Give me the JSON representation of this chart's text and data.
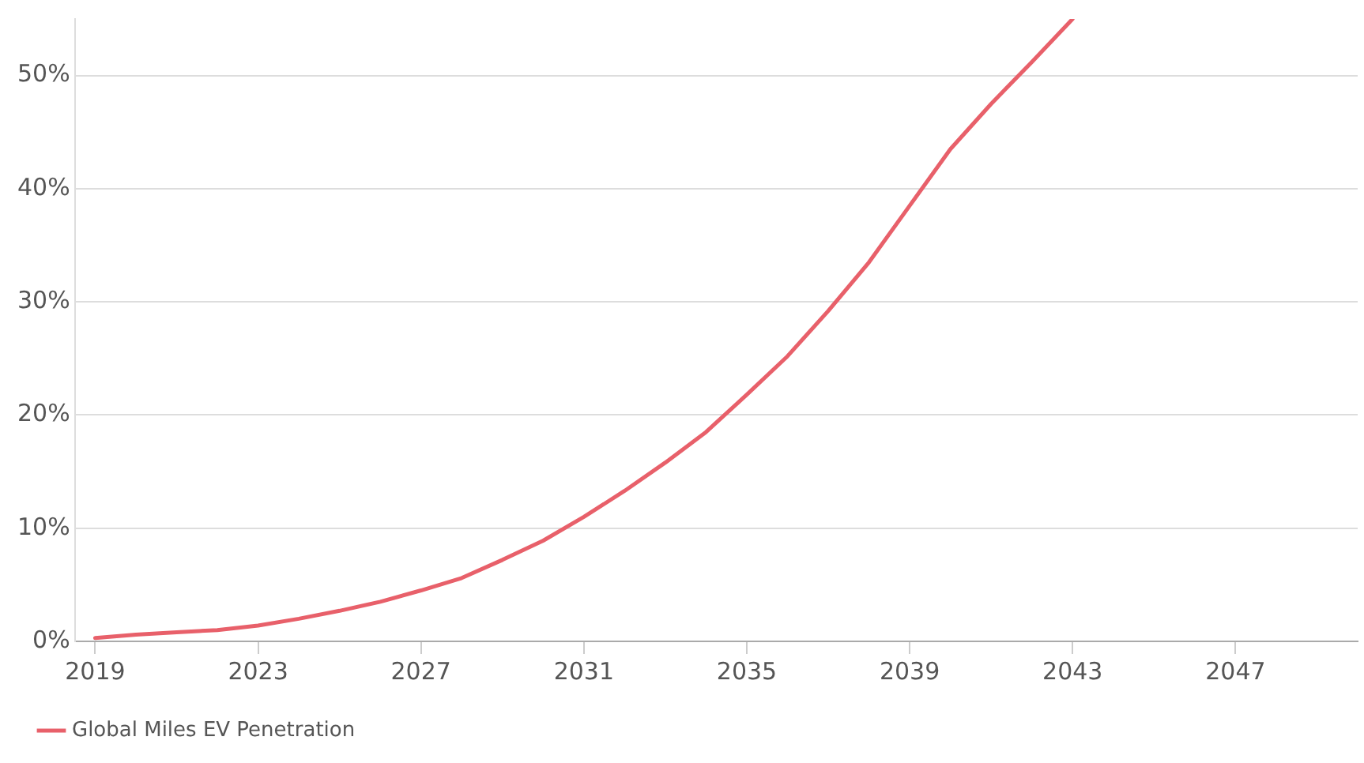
{
  "chart_data": {
    "type": "line",
    "x": [
      2019,
      2020,
      2021,
      2022,
      2023,
      2024,
      2025,
      2026,
      2027,
      2028,
      2029,
      2030,
      2031,
      2032,
      2033,
      2034,
      2035,
      2036,
      2037,
      2038,
      2039,
      2040,
      2041,
      2042,
      2043
    ],
    "series": [
      {
        "name": "Global Miles EV Penetration",
        "color": "#e8606a",
        "values": [
          0.3,
          0.6,
          0.8,
          1.0,
          1.4,
          2.0,
          2.7,
          3.5,
          4.5,
          5.6,
          7.2,
          8.9,
          11,
          13.3,
          15.8,
          18.5,
          21.8,
          25.2,
          29.2,
          33.5,
          38.5,
          43.5,
          47.5,
          51.2,
          55
        ]
      }
    ],
    "xlim": [
      2018.5,
      2050
    ],
    "xticks": [
      2019,
      2023,
      2027,
      2031,
      2035,
      2039,
      2043,
      2047
    ],
    "ylim": [
      0,
      55
    ],
    "yticks": [
      {
        "value": 0,
        "label": "0%"
      },
      {
        "value": 10,
        "label": "10%"
      },
      {
        "value": 20,
        "label": "20%"
      },
      {
        "value": 30,
        "label": "30%"
      },
      {
        "value": 40,
        "label": "40%"
      },
      {
        "value": 50,
        "label": "50%"
      }
    ],
    "grid": "y",
    "legend": "bottom left",
    "marker": "none",
    "line_style": "solid"
  }
}
